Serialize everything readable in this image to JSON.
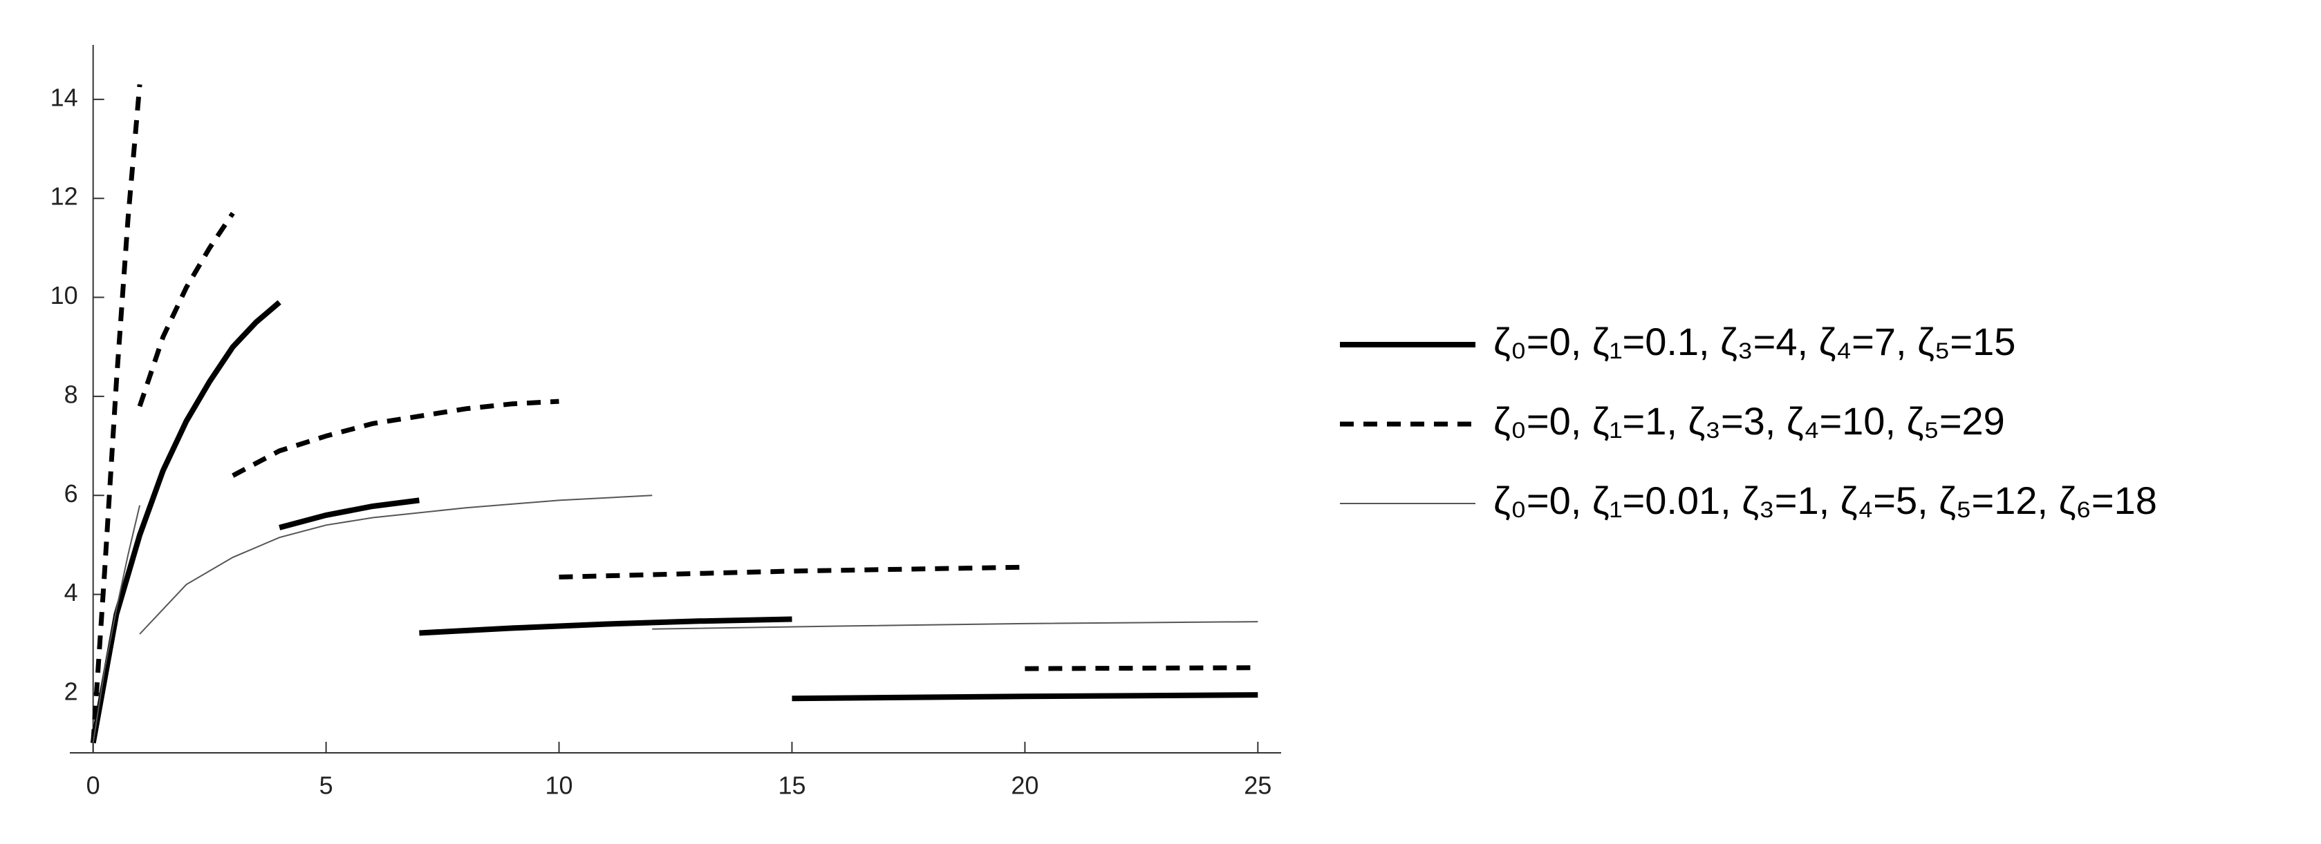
{
  "chart_data": {
    "type": "line",
    "xlim": [
      -0.5,
      25.5
    ],
    "ylim": [
      0.8,
      15.1
    ],
    "xticks": [
      0,
      5,
      10,
      15,
      20,
      25
    ],
    "yticks": [
      2,
      4,
      6,
      8,
      10,
      12,
      14
    ],
    "legend": "right",
    "series": [
      {
        "name": "ζ₀=0, ζ₁=0.1, ζ₃=4, ζ₄=7, ζ₅=15",
        "color": "#000000",
        "style": "thick",
        "x": [
          0,
          0.5,
          1,
          1.5,
          2,
          2.5,
          3,
          3.5,
          4,
          null,
          4,
          5,
          6,
          7,
          null,
          7,
          9,
          11,
          13,
          15,
          null,
          15,
          20,
          25
        ],
        "values": [
          1,
          3.6,
          5.2,
          6.5,
          7.5,
          8.3,
          9.0,
          9.5,
          9.9,
          null,
          5.35,
          5.6,
          5.78,
          5.9,
          null,
          3.22,
          3.32,
          3.4,
          3.46,
          3.5,
          null,
          1.9,
          1.94,
          1.97
        ]
      },
      {
        "name": "ζ₀=0, ζ₁=1, ζ₃=3, ζ₄=10, ζ₅=29",
        "color": "#000000",
        "style": "dashed",
        "x": [
          0,
          0.25,
          0.5,
          0.75,
          1,
          null,
          1,
          1.5,
          2,
          2.5,
          3,
          null,
          3,
          4,
          5,
          6,
          7,
          8,
          9,
          10,
          null,
          10,
          15,
          20,
          null,
          20,
          25
        ],
        "values": [
          1,
          4.5,
          8.3,
          11.6,
          14.3,
          null,
          7.8,
          9.2,
          10.2,
          11.0,
          11.7,
          null,
          6.4,
          6.9,
          7.2,
          7.45,
          7.6,
          7.75,
          7.85,
          7.9,
          null,
          4.35,
          4.47,
          4.55,
          null,
          2.5,
          2.52
        ]
      },
      {
        "name": "ζ₀=0, ζ₁=0.01, ζ₃=1, ζ₄=5, ζ₅=12, ζ₆=18",
        "color": "#555555",
        "style": "thin",
        "x": [
          0,
          0.25,
          0.5,
          0.75,
          1,
          null,
          1,
          2,
          3,
          4,
          5,
          6,
          8,
          10,
          12,
          null,
          12,
          16,
          20,
          25
        ],
        "values": [
          1,
          2.5,
          3.7,
          4.8,
          5.8,
          null,
          3.2,
          4.2,
          4.75,
          5.15,
          5.4,
          5.55,
          5.75,
          5.9,
          6.0,
          null,
          3.3,
          3.36,
          3.41,
          3.45
        ]
      }
    ]
  }
}
